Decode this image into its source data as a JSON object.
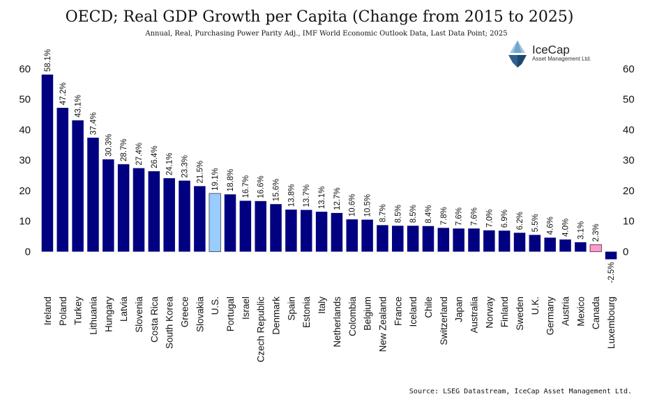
{
  "chart_data": {
    "type": "bar",
    "title": "OECD; Real GDP Growth per Capita (Change from 2015 to 2025)",
    "subtitle": "Annual, Real, Purchasing Power Parity Adj., IMF World Economic Outlook Data, Last Data Point; 2025",
    "source": "Source: LSEG Datastream, IceCap Asset Management Ltd.",
    "xlabel": "",
    "ylabel": "",
    "ylim": [
      -5,
      60
    ],
    "yticks": [
      0,
      10,
      20,
      30,
      40,
      50,
      60
    ],
    "grid": false,
    "categories": [
      "Ireland",
      "Poland",
      "Turkey",
      "Lithuania",
      "Hungary",
      "Latvia",
      "Slovenia",
      "Costa Rica",
      "South Korea",
      "Greece",
      "Slovakia",
      "U.S.",
      "Portugal",
      "Israel",
      "Czech Republic",
      "Denmark",
      "Spain",
      "Estonia",
      "Italy",
      "Netherlands",
      "Colombia",
      "Belgium",
      "New Zealand",
      "France",
      "Iceland",
      "Chile",
      "Switzerland",
      "Japan",
      "Australia",
      "Norway",
      "Finland",
      "Sweden",
      "U.K.",
      "Germany",
      "Austria",
      "Mexico",
      "Canada",
      "Luxembourg"
    ],
    "values": [
      58.1,
      47.2,
      43.1,
      37.4,
      30.3,
      28.7,
      27.4,
      26.4,
      24.1,
      23.3,
      21.5,
      19.1,
      18.8,
      16.7,
      16.6,
      15.6,
      13.8,
      13.7,
      13.1,
      12.7,
      10.6,
      10.5,
      8.7,
      8.5,
      8.5,
      8.4,
      7.8,
      7.6,
      7.6,
      7.0,
      6.9,
      6.2,
      5.5,
      4.6,
      4.0,
      3.1,
      2.3,
      -2.5
    ],
    "data_labels": [
      "58.1%",
      "47.2%",
      "43.1%",
      "37.4%",
      "30.3%",
      "28.7%",
      "27.4%",
      "26.4%",
      "24.1%",
      "23.3%",
      "21.5%",
      "19.1%",
      "18.8%",
      "16.7%",
      "16.6%",
      "15.6%",
      "13.8%",
      "13.7%",
      "13.1%",
      "12.7%",
      "10.6%",
      "10.5%",
      "8.7%",
      "8.5%",
      "8.5%",
      "8.4%",
      "7.8%",
      "7.6%",
      "7.6%",
      "7.0%",
      "6.9%",
      "6.2%",
      "5.5%",
      "4.6%",
      "4.0%",
      "3.1%",
      "2.3%",
      "-2.5%"
    ],
    "colors": {
      "default": "#000080",
      "highlight_us": "#99ccff",
      "highlight_canada": "#ff99cc",
      "outline": "#000000"
    },
    "highlight": {
      "U.S.": "highlight_us",
      "Canada": "highlight_canada"
    }
  },
  "logo": {
    "name": "IceCap",
    "tagline": "Asset Management Ltd."
  }
}
